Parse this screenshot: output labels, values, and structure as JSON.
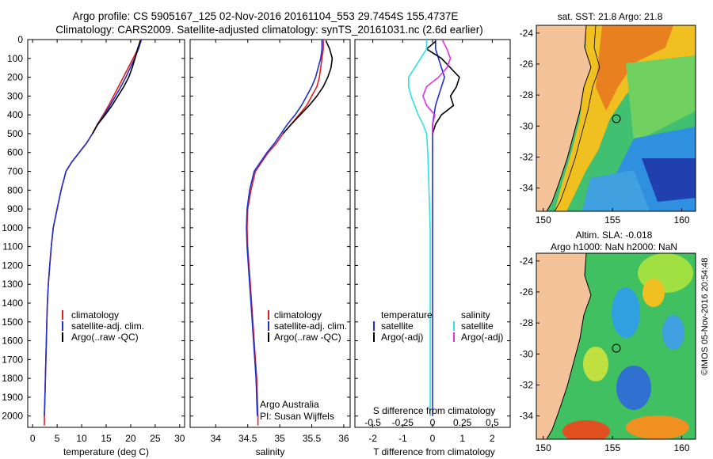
{
  "header": {
    "line1": "Argo profile: CS 5905167_125 02-Nov-2016 20161104_553 29.7454S 155.4737E",
    "line2": "Climatology: CARS2009. Satellite-adjusted climatology: synTS_20161031.nc (2.6d earlier)"
  },
  "credit": "©IMOS 05-Nov-2016 20:54:48",
  "colors": {
    "climatology": "#e02020",
    "satellite": "#2030d0",
    "argo": "#000000",
    "salinity_satellite": "#30e0e0",
    "salinity_argo": "#e030e0",
    "land": "#f5c39a"
  },
  "chart_data": [
    {
      "type": "line",
      "id": "temperature",
      "xlabel": "temperature (deg C)",
      "xlim": [
        -1,
        31
      ],
      "xticks": [
        0,
        5,
        10,
        15,
        20,
        25,
        30
      ],
      "ylim": [
        2060,
        0
      ],
      "yticks": [
        0,
        100,
        200,
        300,
        400,
        500,
        600,
        700,
        800,
        900,
        1000,
        1100,
        1200,
        1300,
        1400,
        1500,
        1600,
        1700,
        1800,
        1900,
        2000
      ],
      "legend": [
        "climatology",
        "satellite-adj. clim.",
        "Argo(..raw -QC)"
      ],
      "series": [
        {
          "name": "climatology",
          "color": "#e02020",
          "points": [
            [
              22,
              0
            ],
            [
              21.5,
              50
            ],
            [
              20.5,
              100
            ],
            [
              19.5,
              150
            ],
            [
              18.5,
              200
            ],
            [
              17.5,
              250
            ],
            [
              16.5,
              300
            ],
            [
              15.5,
              350
            ],
            [
              14.4,
              400
            ],
            [
              13.2,
              450
            ],
            [
              12.2,
              500
            ],
            [
              11,
              550
            ],
            [
              9.5,
              600
            ],
            [
              8,
              650
            ],
            [
              6.8,
              700
            ],
            [
              5.8,
              800
            ],
            [
              5,
              900
            ],
            [
              4.2,
              1000
            ],
            [
              3.8,
              1100
            ],
            [
              3.5,
              1200
            ],
            [
              3.2,
              1300
            ],
            [
              3,
              1400
            ],
            [
              2.9,
              1500
            ],
            [
              2.8,
              1600
            ],
            [
              2.7,
              1700
            ],
            [
              2.6,
              1800
            ],
            [
              2.5,
              1900
            ],
            [
              2.4,
              2000
            ],
            [
              2.4,
              2050
            ]
          ]
        },
        {
          "name": "satellite-adj. clim.",
          "color": "#2030d0",
          "points": [
            [
              22.2,
              0
            ],
            [
              21.6,
              50
            ],
            [
              20.8,
              100
            ],
            [
              19.9,
              150
            ],
            [
              19,
              200
            ],
            [
              18,
              250
            ],
            [
              16.9,
              300
            ],
            [
              15.8,
              350
            ],
            [
              14.6,
              400
            ],
            [
              13.3,
              450
            ],
            [
              12.2,
              500
            ],
            [
              11,
              550
            ],
            [
              9.5,
              600
            ],
            [
              8,
              650
            ],
            [
              6.8,
              700
            ],
            [
              5.8,
              800
            ],
            [
              5,
              900
            ],
            [
              4.2,
              1000
            ],
            [
              3.8,
              1100
            ],
            [
              3.5,
              1200
            ],
            [
              3.2,
              1300
            ],
            [
              3,
              1400
            ],
            [
              2.9,
              1500
            ],
            [
              2.8,
              1600
            ],
            [
              2.7,
              1700
            ],
            [
              2.6,
              1800
            ],
            [
              2.5,
              1900
            ],
            [
              2.4,
              2000
            ]
          ]
        },
        {
          "name": "Argo(..raw -QC)",
          "color": "#000000",
          "points": [
            [
              22,
              5
            ],
            [
              21.4,
              50
            ],
            [
              20.9,
              100
            ],
            [
              20.3,
              150
            ],
            [
              19.6,
              200
            ],
            [
              18.6,
              250
            ],
            [
              17.4,
              300
            ],
            [
              16.2,
              350
            ],
            [
              14.8,
              400
            ],
            [
              13.3,
              450
            ],
            [
              12.2,
              500
            ]
          ]
        }
      ]
    },
    {
      "type": "line",
      "id": "salinity",
      "xlabel": "salinity",
      "xlim": [
        33.6,
        36.1
      ],
      "xticks": [
        34,
        34.5,
        35,
        35.5,
        36
      ],
      "ylim": [
        2060,
        0
      ],
      "legend": [
        "climatology",
        "satellite-adj. clim.",
        "Argo(..raw -QC)"
      ],
      "annotation": [
        "Argo Australia",
        "PI: Susan Wijffels"
      ],
      "series": [
        {
          "name": "climatology",
          "color": "#e02020",
          "points": [
            [
              35.68,
              0
            ],
            [
              35.68,
              50
            ],
            [
              35.66,
              100
            ],
            [
              35.64,
              150
            ],
            [
              35.62,
              200
            ],
            [
              35.58,
              250
            ],
            [
              35.5,
              300
            ],
            [
              35.42,
              350
            ],
            [
              35.3,
              400
            ],
            [
              35.18,
              450
            ],
            [
              35.05,
              500
            ],
            [
              34.95,
              550
            ],
            [
              34.82,
              600
            ],
            [
              34.72,
              650
            ],
            [
              34.62,
              700
            ],
            [
              34.55,
              800
            ],
            [
              34.5,
              900
            ],
            [
              34.49,
              1000
            ],
            [
              34.5,
              1100
            ],
            [
              34.52,
              1200
            ],
            [
              34.54,
              1300
            ],
            [
              34.56,
              1400
            ],
            [
              34.58,
              1500
            ],
            [
              34.6,
              1600
            ],
            [
              34.62,
              1700
            ],
            [
              34.64,
              1800
            ],
            [
              34.65,
              1900
            ],
            [
              34.66,
              2000
            ],
            [
              34.66,
              2050
            ]
          ]
        },
        {
          "name": "satellite-adj. clim.",
          "color": "#2030d0",
          "points": [
            [
              35.66,
              0
            ],
            [
              35.66,
              50
            ],
            [
              35.64,
              100
            ],
            [
              35.6,
              150
            ],
            [
              35.56,
              200
            ],
            [
              35.5,
              250
            ],
            [
              35.42,
              300
            ],
            [
              35.34,
              350
            ],
            [
              35.24,
              400
            ],
            [
              35.12,
              450
            ],
            [
              35.02,
              500
            ],
            [
              34.92,
              550
            ],
            [
              34.8,
              600
            ],
            [
              34.7,
              650
            ],
            [
              34.6,
              700
            ],
            [
              34.53,
              800
            ],
            [
              34.49,
              900
            ],
            [
              34.48,
              1000
            ],
            [
              34.49,
              1100
            ],
            [
              34.51,
              1200
            ],
            [
              34.53,
              1300
            ],
            [
              34.55,
              1400
            ],
            [
              34.57,
              1500
            ],
            [
              34.59,
              1600
            ],
            [
              34.61,
              1700
            ],
            [
              34.63,
              1800
            ],
            [
              34.64,
              1900
            ],
            [
              34.65,
              2000
            ]
          ]
        },
        {
          "name": "Argo(..raw -QC)",
          "color": "#000000",
          "points": [
            [
              35.72,
              5
            ],
            [
              35.78,
              50
            ],
            [
              35.82,
              100
            ],
            [
              35.8,
              150
            ],
            [
              35.75,
              200
            ],
            [
              35.68,
              250
            ],
            [
              35.58,
              300
            ],
            [
              35.46,
              350
            ],
            [
              35.32,
              400
            ],
            [
              35.18,
              450
            ],
            [
              35.05,
              500
            ]
          ]
        }
      ]
    },
    {
      "type": "line",
      "id": "difference",
      "xlabel": "T difference from climatology",
      "xlabel_top": "S difference from climatology",
      "xlim": [
        -2.6,
        2.6
      ],
      "xticks": [
        -2,
        -1,
        0,
        1,
        2
      ],
      "xticks_top": [
        "-0.5",
        "-0.25",
        "0",
        "0.25",
        "0.5"
      ],
      "ylim": [
        2060,
        0
      ],
      "legend_temperature": {
        "title": "temperature",
        "entries": [
          "satellite",
          "Argo(-adj)"
        ]
      },
      "legend_salinity": {
        "title": "salinity",
        "entries": [
          "satellite",
          "Argo(-adj)"
        ]
      },
      "series": [
        {
          "name": "temperature satellite",
          "color": "#2030d0",
          "points": [
            [
              0.1,
              0
            ],
            [
              0.1,
              50
            ],
            [
              0.2,
              100
            ],
            [
              0.3,
              150
            ],
            [
              0.4,
              200
            ],
            [
              0.3,
              250
            ],
            [
              0.2,
              300
            ],
            [
              0.1,
              350
            ],
            [
              0.05,
              400
            ],
            [
              0,
              450
            ],
            [
              0,
              500
            ],
            [
              0,
              600
            ],
            [
              0,
              800
            ],
            [
              0,
              1000
            ],
            [
              0,
              1500
            ],
            [
              0,
              2000
            ]
          ]
        },
        {
          "name": "temperature Argo(-adj)",
          "color": "#000000",
          "points": [
            [
              0.1,
              10
            ],
            [
              -0.2,
              50
            ],
            [
              0.3,
              100
            ],
            [
              0.6,
              150
            ],
            [
              0.9,
              200
            ],
            [
              0.8,
              250
            ],
            [
              0.6,
              300
            ],
            [
              0.7,
              350
            ],
            [
              0.3,
              400
            ],
            [
              0.1,
              450
            ],
            [
              0,
              500
            ]
          ]
        },
        {
          "name": "salinity satellite",
          "color": "#30e0e0",
          "points": [
            [
              -0.05,
              0
            ],
            [
              -0.05,
              50
            ],
            [
              -0.1,
              100
            ],
            [
              -0.15,
              150
            ],
            [
              -0.2,
              200
            ],
            [
              -0.2,
              250
            ],
            [
              -0.18,
              300
            ],
            [
              -0.15,
              350
            ],
            [
              -0.12,
              400
            ],
            [
              -0.08,
              450
            ],
            [
              -0.05,
              500
            ],
            [
              -0.04,
              600
            ],
            [
              -0.03,
              800
            ],
            [
              -0.02,
              1000
            ],
            [
              -0.02,
              1500
            ],
            [
              -0.02,
              2000
            ]
          ]
        },
        {
          "name": "salinity Argo(-adj)",
          "color": "#e030e0",
          "points": [
            [
              0.08,
              0
            ],
            [
              0.12,
              50
            ],
            [
              0.15,
              100
            ],
            [
              0.12,
              150
            ],
            [
              0.05,
              200
            ],
            [
              -0.05,
              250
            ],
            [
              -0.08,
              300
            ],
            [
              -0.05,
              350
            ],
            [
              0.02,
              400
            ],
            [
              0,
              450
            ],
            [
              0,
              500
            ]
          ]
        }
      ]
    },
    {
      "type": "heatmap",
      "id": "sst_map",
      "title": "sat. SST: 21.8 Argo: 21.8",
      "xlim": [
        149.5,
        161
      ],
      "ylim": [
        -35.5,
        -23.5
      ],
      "xticks": [
        150,
        155,
        160
      ],
      "yticks": [
        -24,
        -26,
        -28,
        -30,
        -32,
        -34
      ],
      "marker": [
        155.47,
        -29.75
      ]
    },
    {
      "type": "heatmap",
      "id": "sla_map",
      "title": [
        "Altim. SLA: -0.018",
        "Argo h1000: NaN h2000: NaN"
      ],
      "xlim": [
        149.5,
        161
      ],
      "ylim": [
        -35.5,
        -23.5
      ],
      "xticks": [
        150,
        155,
        160
      ],
      "yticks": [
        -24,
        -26,
        -28,
        -30,
        -32,
        -34
      ],
      "marker": [
        155.47,
        -29.75
      ]
    }
  ]
}
